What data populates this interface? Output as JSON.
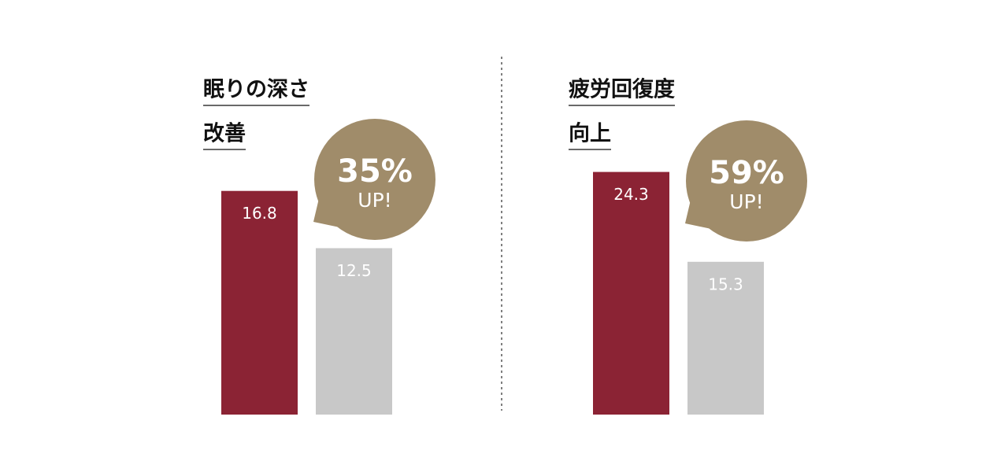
{
  "chart_data": [
    {
      "type": "bar",
      "title": [
        "眠りの深さ",
        "改善"
      ],
      "categories": [
        null,
        null
      ],
      "values": [
        16.8,
        12.5
      ],
      "colors": [
        "#8b2334",
        "#c8c8c8"
      ],
      "ylim": [
        0,
        19.5
      ],
      "badge": [
        "35%",
        "UP!"
      ],
      "badge_color": "#a08c6a"
    },
    {
      "type": "bar",
      "title": [
        "疲労回復度",
        "向上"
      ],
      "categories": [
        null,
        null
      ],
      "values": [
        24.3,
        15.3
      ],
      "colors": [
        "#8b2334",
        "#c8c8c8"
      ],
      "ylim": [
        0,
        26
      ],
      "badge": [
        "59%",
        "UP!"
      ],
      "badge_color": "#a08c6a"
    }
  ]
}
